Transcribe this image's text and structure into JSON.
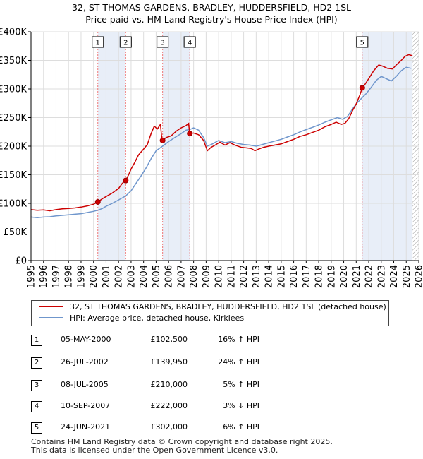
{
  "chart_data": {
    "type": "line",
    "title": "32, ST THOMAS GARDENS, BRADLEY, HUDDERSFIELD, HD2 1SL",
    "subtitle": "Price paid vs. HM Land Registry's House Price Index (HPI)",
    "xlim": [
      1995,
      2026
    ],
    "ylim": [
      0,
      400000
    ],
    "x_ticks": [
      "1995",
      "1996",
      "1997",
      "1998",
      "1999",
      "2000",
      "2001",
      "2002",
      "2003",
      "2004",
      "2005",
      "2006",
      "2007",
      "2008",
      "2009",
      "2010",
      "2011",
      "2012",
      "2013",
      "2014",
      "2015",
      "2016",
      "2017",
      "2018",
      "2019",
      "2020",
      "2021",
      "2022",
      "2023",
      "2024",
      "2025",
      "2026"
    ],
    "y_ticks": [
      {
        "value": 0,
        "label": "£0"
      },
      {
        "value": 50000,
        "label": "£50K"
      },
      {
        "value": 100000,
        "label": "£100K"
      },
      {
        "value": 150000,
        "label": "£150K"
      },
      {
        "value": 200000,
        "label": "£200K"
      },
      {
        "value": 250000,
        "label": "£250K"
      },
      {
        "value": 300000,
        "label": "£300K"
      },
      {
        "value": 350000,
        "label": "£350K"
      },
      {
        "value": 400000,
        "label": "£400K"
      }
    ],
    "grid": true,
    "colors": {
      "property": "#cc0000",
      "hpi": "#6f96cc",
      "shade": "#e8eef8"
    },
    "series": [
      {
        "name": "32, ST THOMAS GARDENS, BRADLEY, HUDDERSFIELD, HD2 1SL (detached house)",
        "color": "#cc0000",
        "points": [
          [
            1995.0,
            89000
          ],
          [
            1995.5,
            88000
          ],
          [
            1996.0,
            88500
          ],
          [
            1996.5,
            87000
          ],
          [
            1997.0,
            89000
          ],
          [
            1997.5,
            90500
          ],
          [
            1998.0,
            91000
          ],
          [
            1998.5,
            92000
          ],
          [
            1999.0,
            93500
          ],
          [
            1999.5,
            95500
          ],
          [
            2000.0,
            98500
          ],
          [
            2000.34,
            102500
          ],
          [
            2000.7,
            108000
          ],
          [
            2001.0,
            112000
          ],
          [
            2001.5,
            118000
          ],
          [
            2002.0,
            126000
          ],
          [
            2002.3,
            135000
          ],
          [
            2002.57,
            139950
          ],
          [
            2002.8,
            150000
          ],
          [
            2003.0,
            160000
          ],
          [
            2003.3,
            172000
          ],
          [
            2003.6,
            185000
          ],
          [
            2004.0,
            195000
          ],
          [
            2004.3,
            203000
          ],
          [
            2004.6,
            222000
          ],
          [
            2004.85,
            235000
          ],
          [
            2005.1,
            230000
          ],
          [
            2005.35,
            238000
          ],
          [
            2005.45,
            215000
          ],
          [
            2005.52,
            210000
          ],
          [
            2005.8,
            215000
          ],
          [
            2006.2,
            218000
          ],
          [
            2006.6,
            226000
          ],
          [
            2007.0,
            232000
          ],
          [
            2007.4,
            236000
          ],
          [
            2007.6,
            240000
          ],
          [
            2007.69,
            222000
          ],
          [
            2008.0,
            223000
          ],
          [
            2008.4,
            220000
          ],
          [
            2008.8,
            210000
          ],
          [
            2009.1,
            192000
          ],
          [
            2009.4,
            198000
          ],
          [
            2009.8,
            203000
          ],
          [
            2010.1,
            207000
          ],
          [
            2010.5,
            202000
          ],
          [
            2010.9,
            206000
          ],
          [
            2011.3,
            202000
          ],
          [
            2011.8,
            198000
          ],
          [
            2012.2,
            197000
          ],
          [
            2012.6,
            196000
          ],
          [
            2012.9,
            192000
          ],
          [
            2013.2,
            195000
          ],
          [
            2013.6,
            198000
          ],
          [
            2014.0,
            200000
          ],
          [
            2014.5,
            202000
          ],
          [
            2015.0,
            204000
          ],
          [
            2015.5,
            208000
          ],
          [
            2016.0,
            212000
          ],
          [
            2016.5,
            217000
          ],
          [
            2017.0,
            220000
          ],
          [
            2017.5,
            224000
          ],
          [
            2018.0,
            228000
          ],
          [
            2018.5,
            234000
          ],
          [
            2019.0,
            238000
          ],
          [
            2019.4,
            242000
          ],
          [
            2019.8,
            238000
          ],
          [
            2020.1,
            240000
          ],
          [
            2020.4,
            248000
          ],
          [
            2020.7,
            262000
          ],
          [
            2021.0,
            274000
          ],
          [
            2021.3,
            290000
          ],
          [
            2021.48,
            302000
          ],
          [
            2021.7,
            308000
          ],
          [
            2022.0,
            318000
          ],
          [
            2022.4,
            332000
          ],
          [
            2022.8,
            342000
          ],
          [
            2023.1,
            340000
          ],
          [
            2023.5,
            336000
          ],
          [
            2023.9,
            335000
          ],
          [
            2024.2,
            342000
          ],
          [
            2024.6,
            350000
          ],
          [
            2024.9,
            357000
          ],
          [
            2025.2,
            360000
          ],
          [
            2025.5,
            358000
          ]
        ]
      },
      {
        "name": "HPI: Average price, detached house, Kirklees",
        "color": "#6f96cc",
        "points": [
          [
            1995.0,
            76000
          ],
          [
            1995.5,
            75000
          ],
          [
            1996.0,
            76000
          ],
          [
            1996.5,
            76500
          ],
          [
            1997.0,
            78000
          ],
          [
            1997.5,
            79000
          ],
          [
            1998.0,
            80000
          ],
          [
            1998.5,
            81000
          ],
          [
            1999.0,
            82000
          ],
          [
            1999.5,
            84000
          ],
          [
            2000.0,
            86000
          ],
          [
            2000.34,
            88000
          ],
          [
            2000.7,
            91000
          ],
          [
            2001.0,
            95000
          ],
          [
            2001.5,
            100000
          ],
          [
            2002.0,
            106000
          ],
          [
            2002.57,
            113000
          ],
          [
            2003.0,
            122000
          ],
          [
            2003.4,
            135000
          ],
          [
            2003.8,
            148000
          ],
          [
            2004.2,
            162000
          ],
          [
            2004.6,
            178000
          ],
          [
            2005.0,
            192000
          ],
          [
            2005.52,
            200000
          ],
          [
            2006.0,
            208000
          ],
          [
            2006.5,
            215000
          ],
          [
            2007.0,
            222000
          ],
          [
            2007.4,
            228000
          ],
          [
            2007.69,
            229000
          ],
          [
            2008.0,
            232000
          ],
          [
            2008.4,
            228000
          ],
          [
            2008.8,
            215000
          ],
          [
            2009.1,
            200000
          ],
          [
            2009.5,
            204000
          ],
          [
            2010.0,
            210000
          ],
          [
            2010.5,
            206000
          ],
          [
            2011.0,
            208000
          ],
          [
            2011.5,
            205000
          ],
          [
            2012.0,
            203000
          ],
          [
            2012.5,
            202000
          ],
          [
            2013.0,
            200000
          ],
          [
            2013.5,
            203000
          ],
          [
            2014.0,
            206000
          ],
          [
            2014.5,
            209000
          ],
          [
            2015.0,
            212000
          ],
          [
            2015.5,
            216000
          ],
          [
            2016.0,
            220000
          ],
          [
            2016.5,
            225000
          ],
          [
            2017.0,
            229000
          ],
          [
            2017.5,
            233000
          ],
          [
            2018.0,
            237000
          ],
          [
            2018.5,
            242000
          ],
          [
            2019.0,
            246000
          ],
          [
            2019.5,
            250000
          ],
          [
            2019.9,
            247000
          ],
          [
            2020.3,
            252000
          ],
          [
            2020.7,
            265000
          ],
          [
            2021.0,
            274000
          ],
          [
            2021.48,
            285000
          ],
          [
            2021.8,
            292000
          ],
          [
            2022.2,
            303000
          ],
          [
            2022.6,
            315000
          ],
          [
            2023.0,
            322000
          ],
          [
            2023.4,
            318000
          ],
          [
            2023.8,
            314000
          ],
          [
            2024.2,
            322000
          ],
          [
            2024.6,
            332000
          ],
          [
            2025.0,
            338000
          ],
          [
            2025.4,
            336000
          ]
        ]
      }
    ],
    "sales": [
      {
        "num": "1",
        "x": 2000.34,
        "price": 102500,
        "date": "05-MAY-2000",
        "price_label": "£102,500",
        "hpi": "16% ↑ HPI"
      },
      {
        "num": "2",
        "x": 2002.57,
        "price": 139950,
        "date": "26-JUL-2002",
        "price_label": "£139,950",
        "hpi": "24% ↑ HPI"
      },
      {
        "num": "3",
        "x": 2005.52,
        "price": 210000,
        "date": "08-JUL-2005",
        "price_label": "£210,000",
        "hpi": "5% ↑ HPI"
      },
      {
        "num": "4",
        "x": 2007.69,
        "price": 222000,
        "date": "10-SEP-2007",
        "price_label": "£222,000",
        "hpi": "3% ↓ HPI"
      },
      {
        "num": "5",
        "x": 2021.48,
        "price": 302000,
        "date": "24-JUN-2021",
        "price_label": "£302,000",
        "hpi": "6% ↑ HPI"
      }
    ],
    "shaded_ranges": [
      [
        2000.34,
        2002.57
      ],
      [
        2005.52,
        2007.69
      ],
      [
        2021.48,
        2025.5
      ]
    ],
    "hatch_from": 2025.5
  },
  "legend": {
    "property": "32, ST THOMAS GARDENS, BRADLEY, HUDDERSFIELD, HD2 1SL (detached house)",
    "hpi": "HPI: Average price, detached house, Kirklees"
  },
  "footer": {
    "line1": "Contains HM Land Registry data © Crown copyright and database right 2025.",
    "line2": "This data is licensed under the Open Government Licence v3.0."
  }
}
